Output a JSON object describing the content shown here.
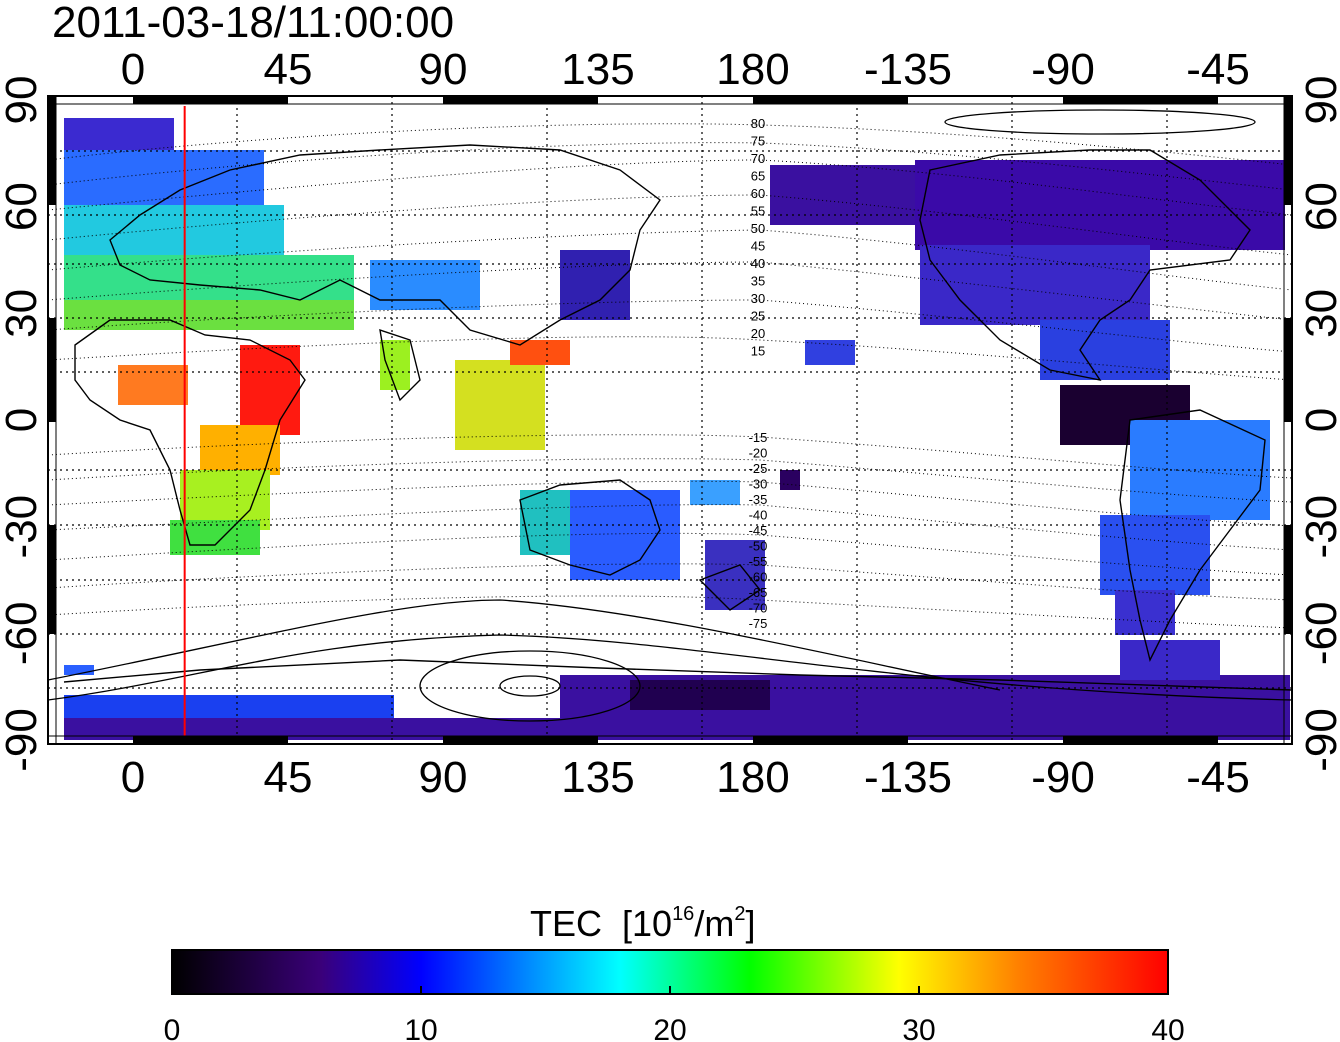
{
  "header": {
    "timestamp": "2011-03-18/11:00:00"
  },
  "map": {
    "top_lon_ticks": [
      "0",
      "45",
      "90",
      "135",
      "180",
      "-135",
      "-90",
      "-45"
    ],
    "bottom_lon_ticks": [
      "0",
      "45",
      "90",
      "135",
      "180",
      "-135",
      "-90",
      "-45"
    ],
    "left_lat_ticks": [
      "90",
      "60",
      "30",
      "0",
      "-30",
      "-60",
      "-90"
    ],
    "right_lat_ticks": [
      "90",
      "60",
      "30",
      "0",
      "-30",
      "-60",
      "-90"
    ],
    "magnetic_lat_labels": [
      "80",
      "75",
      "70",
      "65",
      "60",
      "55",
      "50",
      "45",
      "40",
      "35",
      "30",
      "25",
      "20",
      "15",
      "-15",
      "-20",
      "-25",
      "-30",
      "-35",
      "-40",
      "-45",
      "-50",
      "-55",
      "-60",
      "-65",
      "-70",
      "-75"
    ],
    "marker_longitude": 15,
    "marker_color": "#ff0000"
  },
  "colorbar": {
    "label": "TEC",
    "unit_base": "[10",
    "unit_exp": "16",
    "unit_mid": "/m",
    "unit_exp2": "2",
    "unit_end": "]",
    "min": 0,
    "max": 40,
    "tick_labels": [
      "0",
      "10",
      "20",
      "30",
      "40"
    ],
    "colors": [
      "#000000",
      "#3a007a",
      "#0000ff",
      "#00ffff",
      "#00ff00",
      "#ffff00",
      "#ff8000",
      "#ff0000"
    ]
  }
}
